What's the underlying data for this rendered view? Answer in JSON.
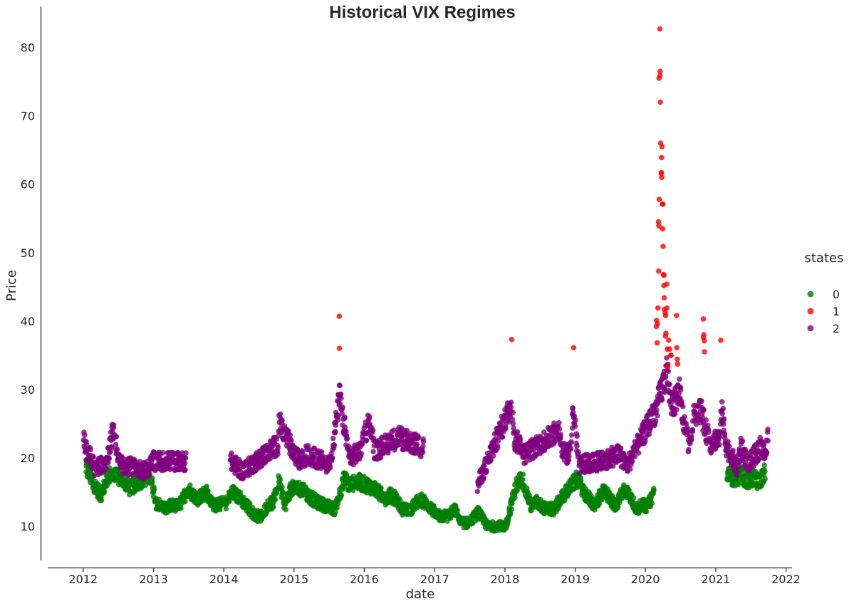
{
  "chart_data": {
    "type": "scatter",
    "title": "Historical VIX Regimes",
    "xlabel": "date",
    "ylabel": "Price",
    "xlim": [
      "2011-07-01",
      "2022-02-01"
    ],
    "ylim": [
      5,
      86
    ],
    "x_ticks": [
      "2012",
      "2013",
      "2014",
      "2015",
      "2016",
      "2017",
      "2018",
      "2019",
      "2020",
      "2021",
      "2022"
    ],
    "y_ticks": [
      10,
      20,
      30,
      40,
      50,
      60,
      70,
      80
    ],
    "grid": false,
    "legend": {
      "title": "states",
      "placement": "right",
      "entries": [
        "0",
        "1",
        "2"
      ]
    },
    "marker_opacity": 0.8,
    "series": [
      {
        "name": "0",
        "color": "#008000",
        "anchors": [
          [
            "2012-01-15",
            18.5
          ],
          [
            "2012-03-01",
            16.0
          ],
          [
            "2012-04-01",
            14.5
          ],
          [
            "2012-05-15",
            17.5
          ],
          [
            "2012-07-15",
            17.0
          ],
          [
            "2012-09-01",
            15.5
          ],
          [
            "2012-10-15",
            16.5
          ],
          [
            "2012-12-15",
            17.5
          ],
          [
            "2013-01-15",
            13.5
          ],
          [
            "2013-03-01",
            12.5
          ],
          [
            "2013-04-01",
            13.0
          ],
          [
            "2013-05-15",
            13.0
          ],
          [
            "2013-07-01",
            15.5
          ],
          [
            "2013-08-15",
            14.0
          ],
          [
            "2013-10-01",
            15.0
          ],
          [
            "2013-11-15",
            13.0
          ],
          [
            "2014-01-15",
            13.5
          ],
          [
            "2014-02-15",
            15.0
          ],
          [
            "2014-03-15",
            14.5
          ],
          [
            "2014-05-01",
            13.0
          ],
          [
            "2014-06-15",
            11.5
          ],
          [
            "2014-07-15",
            11.5
          ],
          [
            "2014-08-15",
            13.0
          ],
          [
            "2014-09-15",
            13.5
          ],
          [
            "2014-10-15",
            16.5
          ],
          [
            "2014-11-15",
            13.0
          ],
          [
            "2014-12-15",
            15.5
          ],
          [
            "2015-02-15",
            15.5
          ],
          [
            "2015-03-15",
            14.5
          ],
          [
            "2015-05-01",
            13.5
          ],
          [
            "2015-06-15",
            13.0
          ],
          [
            "2015-08-01",
            12.5
          ],
          [
            "2015-09-20",
            17.0
          ],
          [
            "2015-10-15",
            16.0
          ],
          [
            "2015-12-01",
            16.5
          ],
          [
            "2016-03-01",
            15.5
          ],
          [
            "2016-04-15",
            14.0
          ],
          [
            "2016-05-15",
            14.5
          ],
          [
            "2016-06-15",
            14.0
          ],
          [
            "2016-07-15",
            12.5
          ],
          [
            "2016-09-01",
            12.5
          ],
          [
            "2016-10-15",
            14.0
          ],
          [
            "2016-12-01",
            13.0
          ],
          [
            "2017-01-15",
            11.5
          ],
          [
            "2017-03-15",
            11.5
          ],
          [
            "2017-04-15",
            12.5
          ],
          [
            "2017-05-15",
            10.5
          ],
          [
            "2017-07-01",
            10.5
          ],
          [
            "2017-08-15",
            12.0
          ],
          [
            "2017-10-01",
            10.0
          ],
          [
            "2017-11-15",
            10.0
          ],
          [
            "2018-01-05",
            10.0
          ],
          [
            "2018-03-01",
            16.0
          ],
          [
            "2018-04-01",
            17.0
          ],
          [
            "2018-05-15",
            13.0
          ],
          [
            "2018-06-15",
            13.5
          ],
          [
            "2018-08-01",
            12.5
          ],
          [
            "2018-09-15",
            12.5
          ],
          [
            "2018-10-15",
            14.0
          ],
          [
            "2019-01-15",
            17.0
          ],
          [
            "2019-02-15",
            15.0
          ],
          [
            "2019-03-15",
            14.0
          ],
          [
            "2019-04-15",
            13.0
          ],
          [
            "2019-06-01",
            15.5
          ],
          [
            "2019-07-01",
            14.0
          ],
          [
            "2019-08-01",
            13.0
          ],
          [
            "2019-09-15",
            15.5
          ],
          [
            "2019-10-15",
            14.5
          ],
          [
            "2019-11-15",
            12.5
          ],
          [
            "2019-12-15",
            13.0
          ],
          [
            "2020-01-15",
            13.0
          ],
          [
            "2020-02-15",
            15.0
          ],
          [
            "2021-03-01",
            17.5
          ],
          [
            "2021-04-15",
            17.0
          ],
          [
            "2021-05-15",
            17.5
          ],
          [
            "2021-06-15",
            16.5
          ],
          [
            "2021-07-15",
            17.0
          ],
          [
            "2021-08-15",
            16.5
          ],
          [
            "2021-09-15",
            18.0
          ]
        ]
      },
      {
        "name": "1",
        "color": "#ff0000",
        "points": [
          [
            "2015-08-24",
            40.7
          ],
          [
            "2015-08-25",
            36.0
          ],
          [
            "2018-02-05",
            37.3
          ],
          [
            "2018-12-24",
            36.1
          ],
          [
            "2020-02-27",
            39.2
          ],
          [
            "2020-02-28",
            40.1
          ],
          [
            "2020-03-02",
            36.8
          ],
          [
            "2020-03-04",
            39.6
          ],
          [
            "2020-03-06",
            41.9
          ],
          [
            "2020-03-09",
            54.5
          ],
          [
            "2020-03-10",
            47.3
          ],
          [
            "2020-03-11",
            53.9
          ],
          [
            "2020-03-12",
            75.5
          ],
          [
            "2020-03-13",
            57.8
          ],
          [
            "2020-03-16",
            82.7
          ],
          [
            "2020-03-17",
            75.9
          ],
          [
            "2020-03-18",
            76.5
          ],
          [
            "2020-03-19",
            72.0
          ],
          [
            "2020-03-20",
            66.0
          ],
          [
            "2020-03-23",
            61.6
          ],
          [
            "2020-03-24",
            61.7
          ],
          [
            "2020-03-25",
            63.9
          ],
          [
            "2020-03-26",
            61.0
          ],
          [
            "2020-03-27",
            65.5
          ],
          [
            "2020-03-30",
            57.1
          ],
          [
            "2020-03-31",
            53.5
          ],
          [
            "2020-04-01",
            57.1
          ],
          [
            "2020-04-02",
            50.9
          ],
          [
            "2020-04-03",
            46.8
          ],
          [
            "2020-04-06",
            45.2
          ],
          [
            "2020-04-07",
            46.7
          ],
          [
            "2020-04-08",
            43.4
          ],
          [
            "2020-04-09",
            41.7
          ],
          [
            "2020-04-13",
            41.2
          ],
          [
            "2020-04-14",
            37.8
          ],
          [
            "2020-04-15",
            40.8
          ],
          [
            "2020-04-17",
            38.2
          ],
          [
            "2020-04-21",
            45.4
          ],
          [
            "2020-04-22",
            41.9
          ],
          [
            "2020-04-24",
            35.9
          ],
          [
            "2020-04-27",
            33.3
          ],
          [
            "2020-05-01",
            37.2
          ],
          [
            "2020-05-06",
            35.9
          ],
          [
            "2020-05-12",
            35.0
          ],
          [
            "2020-05-13",
            35.0
          ],
          [
            "2020-06-11",
            40.8
          ],
          [
            "2020-06-12",
            36.1
          ],
          [
            "2020-06-15",
            34.4
          ],
          [
            "2020-06-16",
            33.7
          ],
          [
            "2020-10-28",
            40.3
          ],
          [
            "2020-10-29",
            37.6
          ],
          [
            "2020-10-30",
            38.0
          ],
          [
            "2020-11-02",
            37.1
          ],
          [
            "2020-11-03",
            35.5
          ],
          [
            "2021-01-27",
            37.2
          ]
        ]
      },
      {
        "name": "2",
        "color": "#800080",
        "anchors": [
          [
            "2012-01-03",
            22.5
          ],
          [
            "2012-01-25",
            20.5
          ],
          [
            "2012-02-15",
            20.0
          ],
          [
            "2012-03-01",
            18.5
          ],
          [
            "2012-04-01",
            19.0
          ],
          [
            "2012-05-01",
            19.5
          ],
          [
            "2012-05-25",
            22.5
          ],
          [
            "2012-06-05",
            24.0
          ],
          [
            "2012-06-20",
            22.0
          ],
          [
            "2012-07-10",
            19.0
          ],
          [
            "2012-10-15",
            18.5
          ],
          [
            "2012-11-20",
            18.0
          ],
          [
            "2013-01-01",
            19.5
          ],
          [
            "2013-06-20",
            19.5
          ],
          [
            "2014-02-05",
            19.5
          ],
          [
            "2014-04-10",
            18.0
          ],
          [
            "2014-10-10",
            22.0
          ],
          [
            "2014-10-16",
            25.0
          ],
          [
            "2015-01-15",
            20.0
          ],
          [
            "2015-02-01",
            19.5
          ],
          [
            "2015-03-10",
            20.5
          ],
          [
            "2015-07-08",
            19.0
          ],
          [
            "2015-08-26",
            29.0
          ],
          [
            "2015-09-10",
            26.0
          ],
          [
            "2015-09-30",
            23.0
          ],
          [
            "2015-10-15",
            20.0
          ],
          [
            "2015-12-15",
            21.0
          ],
          [
            "2016-01-10",
            24.0
          ],
          [
            "2016-01-25",
            25.5
          ],
          [
            "2016-02-10",
            23.5
          ],
          [
            "2016-02-25",
            21.0
          ],
          [
            "2016-06-24",
            23.0
          ],
          [
            "2016-11-04",
            21.5
          ],
          [
            "2017-08-11",
            16.0
          ],
          [
            "2018-02-07",
            28.0
          ],
          [
            "2018-02-20",
            22.5
          ],
          [
            "2018-03-25",
            22.0
          ],
          [
            "2018-04-10",
            20.5
          ],
          [
            "2018-10-11",
            24.0
          ],
          [
            "2018-10-25",
            21.0
          ],
          [
            "2018-11-20",
            20.5
          ],
          [
            "2018-12-10",
            21.0
          ],
          [
            "2018-12-21",
            27.0
          ],
          [
            "2019-01-03",
            24.5
          ],
          [
            "2019-01-20",
            19.0
          ],
          [
            "2019-05-15",
            19.5
          ],
          [
            "2019-08-15",
            20.5
          ],
          [
            "2019-10-01",
            19.0
          ],
          [
            "2020-02-25",
            27.0
          ],
          [
            "2020-04-25",
            33.0
          ],
          [
            "2020-05-01",
            30.0
          ],
          [
            "2020-05-15",
            28.0
          ],
          [
            "2020-06-01",
            28.0
          ],
          [
            "2020-06-25",
            30.0
          ],
          [
            "2020-07-10",
            26.5
          ],
          [
            "2020-07-25",
            24.5
          ],
          [
            "2020-08-10",
            22.5
          ],
          [
            "2020-08-25",
            22.0
          ],
          [
            "2020-09-10",
            27.5
          ],
          [
            "2020-09-25",
            26.5
          ],
          [
            "2020-10-15",
            27.0
          ],
          [
            "2020-11-10",
            24.0
          ],
          [
            "2020-12-10",
            22.0
          ],
          [
            "2021-01-05",
            23.0
          ],
          [
            "2021-01-20",
            22.5
          ],
          [
            "2021-02-01",
            27.5
          ],
          [
            "2021-02-20",
            22.0
          ],
          [
            "2021-03-10",
            21.0
          ],
          [
            "2021-04-20",
            18.5
          ],
          [
            "2021-05-12",
            21.5
          ],
          [
            "2021-06-20",
            19.0
          ],
          [
            "2021-08-19",
            21.5
          ],
          [
            "2021-09-20",
            21.0
          ],
          [
            "2021-09-30",
            23.0
          ]
        ]
      }
    ]
  }
}
